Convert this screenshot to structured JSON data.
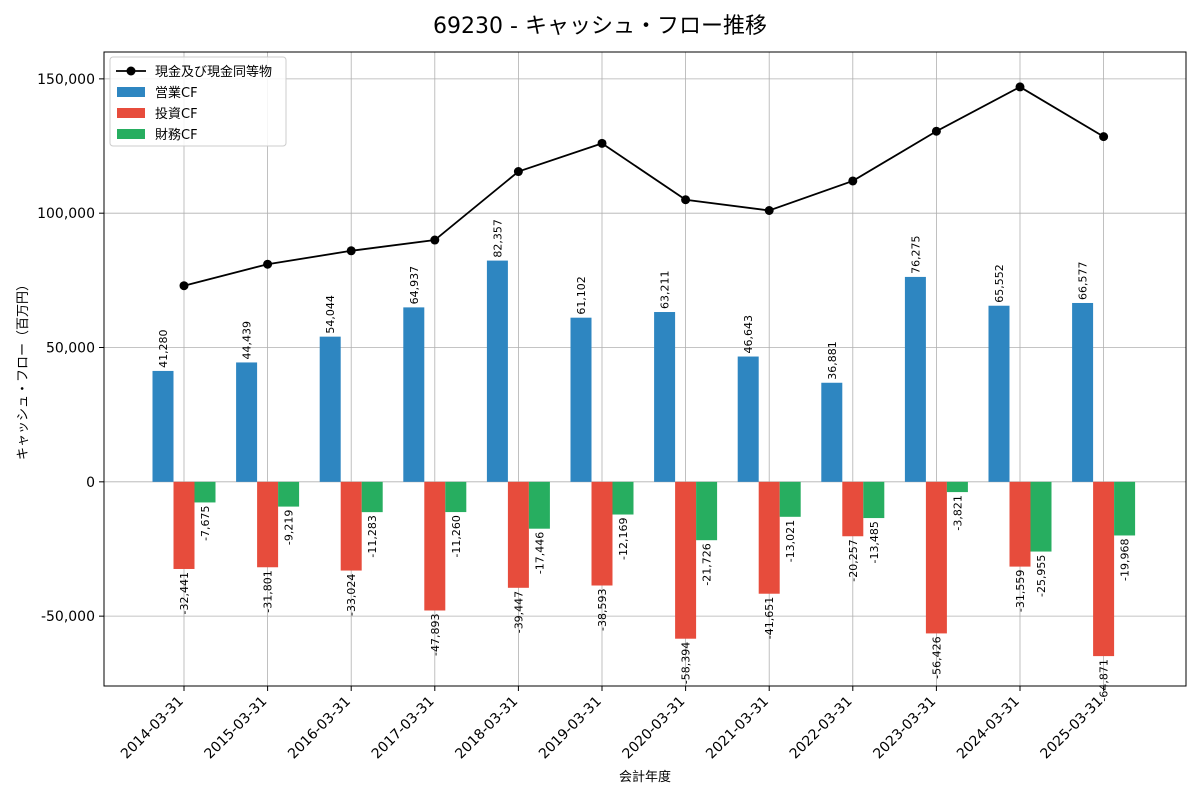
{
  "chart_data": {
    "type": "bar",
    "title": "69230 - キャッシュ・フロー推移",
    "xlabel": "会計年度",
    "ylabel": "キャッシュ・フロー（百万円）",
    "categories": [
      "2014-03-31",
      "2015-03-31",
      "2016-03-31",
      "2017-03-31",
      "2018-03-31",
      "2019-03-31",
      "2020-03-31",
      "2021-03-31",
      "2022-03-31",
      "2023-03-31",
      "2024-03-31",
      "2025-03-31"
    ],
    "ylim": [
      -76000,
      160000
    ],
    "yticks": [
      -50000,
      0,
      50000,
      100000,
      150000
    ],
    "ytick_labels": [
      "-50,000",
      "0",
      "50,000",
      "100,000",
      "150,000"
    ],
    "grid": true,
    "legend_position": "top-left",
    "series": [
      {
        "name": "営業CF",
        "kind": "bar",
        "color": "#2e86c1",
        "values": [
          41280,
          44439,
          54044,
          64937,
          82357,
          61102,
          63211,
          46643,
          36881,
          76275,
          65552,
          66577
        ],
        "labels": [
          "41,280",
          "44,439",
          "54,044",
          "64,937",
          "82,357",
          "61,102",
          "63,211",
          "46,643",
          "36,881",
          "76,275",
          "65,552",
          "66,577"
        ]
      },
      {
        "name": "投資CF",
        "kind": "bar",
        "color": "#e74c3c",
        "values": [
          -32441,
          -31801,
          -33024,
          -47893,
          -39447,
          -38593,
          -58394,
          -41651,
          -20257,
          -56426,
          -31559,
          -64871
        ],
        "labels": [
          "-32,441",
          "-31,801",
          "-33,024",
          "-47,893",
          "-39,447",
          "-38,593",
          "-58,394",
          "-41,651",
          "-20,257",
          "-56,426",
          "-31,559",
          "-64,871"
        ]
      },
      {
        "name": "財務CF",
        "kind": "bar",
        "color": "#27ae60",
        "values": [
          -7675,
          -9219,
          -11283,
          -11260,
          -17446,
          -12169,
          -21726,
          -13021,
          -13485,
          -3821,
          -25955,
          -19968
        ],
        "labels": [
          "-7,675",
          "-9,219",
          "-11,283",
          "-11,260",
          "-17,446",
          "-12,169",
          "-21,726",
          "-13,021",
          "-13,485",
          "-3,821",
          "-25,955",
          "-19,968"
        ]
      },
      {
        "name": "現金及び現金同等物",
        "kind": "line",
        "color": "#000000",
        "values": [
          73000,
          81000,
          86000,
          90000,
          115500,
          126000,
          105000,
          101000,
          112000,
          130500,
          147000,
          128500
        ]
      }
    ]
  }
}
